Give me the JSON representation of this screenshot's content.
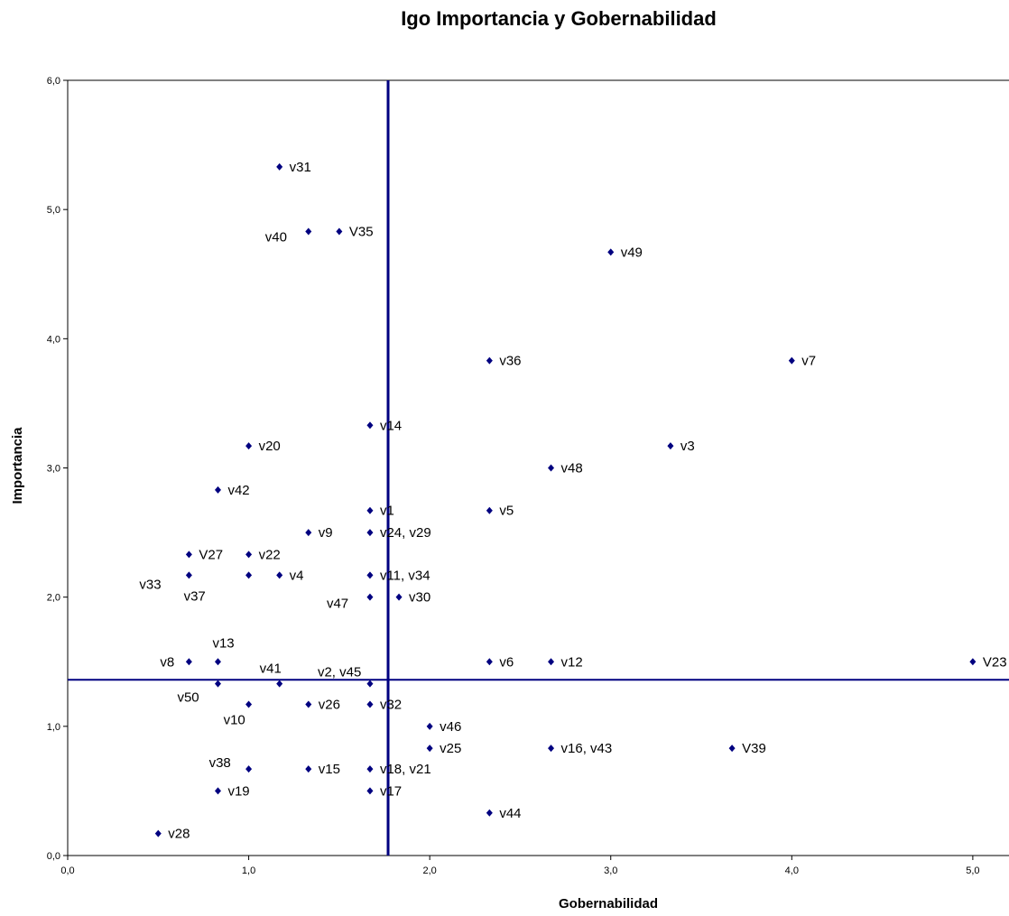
{
  "chart_data": {
    "type": "scatter",
    "title": "Igo Importancia y Gobernabilidad",
    "xlabel": "Gobernabilidad",
    "ylabel": "Importancia",
    "xlim": [
      0,
      5.2
    ],
    "ylim": [
      0,
      6
    ],
    "xticks": [
      "0,0",
      "1,0",
      "2,0",
      "3,0",
      "4,0",
      "5,0"
    ],
    "yticks": [
      "0,0",
      "1,0",
      "2,0",
      "3,0",
      "4,0",
      "5,0",
      "6,0"
    ],
    "grid": false,
    "marker_color": "#000080",
    "reference_lines": {
      "x": 1.77,
      "y": 1.36,
      "color": "#000080"
    },
    "points": [
      {
        "label": "v31",
        "x": 1.17,
        "y": 5.33
      },
      {
        "label": "v40",
        "x": 1.33,
        "y": 4.83
      },
      {
        "label": "V35",
        "x": 1.5,
        "y": 4.83
      },
      {
        "label": "v49",
        "x": 3.0,
        "y": 4.67
      },
      {
        "label": "v36",
        "x": 2.33,
        "y": 3.83
      },
      {
        "label": "v7",
        "x": 4.0,
        "y": 3.83
      },
      {
        "label": "v14",
        "x": 1.67,
        "y": 3.33
      },
      {
        "label": "v20",
        "x": 1.0,
        "y": 3.17
      },
      {
        "label": "v3",
        "x": 3.33,
        "y": 3.17
      },
      {
        "label": "v48",
        "x": 2.67,
        "y": 3.0
      },
      {
        "label": "v42",
        "x": 0.83,
        "y": 2.83
      },
      {
        "label": "v1",
        "x": 1.67,
        "y": 2.67
      },
      {
        "label": "v5",
        "x": 2.33,
        "y": 2.67
      },
      {
        "label": "v9",
        "x": 1.33,
        "y": 2.5
      },
      {
        "label": "v24, v29",
        "x": 1.67,
        "y": 2.5
      },
      {
        "label": "V27",
        "x": 0.67,
        "y": 2.33
      },
      {
        "label": "v22",
        "x": 1.0,
        "y": 2.33
      },
      {
        "label": "v33",
        "x": 0.67,
        "y": 2.17
      },
      {
        "label": "v37",
        "x": 1.0,
        "y": 2.17
      },
      {
        "label": "v4",
        "x": 1.17,
        "y": 2.17
      },
      {
        "label": "v11, v34",
        "x": 1.67,
        "y": 2.17
      },
      {
        "label": "v47",
        "x": 1.67,
        "y": 2.0
      },
      {
        "label": "v30",
        "x": 1.83,
        "y": 2.0
      },
      {
        "label": "v8",
        "x": 0.67,
        "y": 1.5
      },
      {
        "label": "v13",
        "x": 0.83,
        "y": 1.5
      },
      {
        "label": "v6",
        "x": 2.33,
        "y": 1.5
      },
      {
        "label": "v12",
        "x": 2.67,
        "y": 1.5
      },
      {
        "label": "V23",
        "x": 5.0,
        "y": 1.5
      },
      {
        "label": "v50",
        "x": 0.83,
        "y": 1.33
      },
      {
        "label": "v41",
        "x": 1.17,
        "y": 1.33
      },
      {
        "label": "v2, v45",
        "x": 1.67,
        "y": 1.33
      },
      {
        "label": "v10",
        "x": 1.0,
        "y": 1.17
      },
      {
        "label": "v26",
        "x": 1.33,
        "y": 1.17
      },
      {
        "label": "v32",
        "x": 1.67,
        "y": 1.17
      },
      {
        "label": "v46",
        "x": 2.0,
        "y": 1.0
      },
      {
        "label": "v25",
        "x": 2.0,
        "y": 0.83
      },
      {
        "label": "v16, v43",
        "x": 2.67,
        "y": 0.83
      },
      {
        "label": "V39",
        "x": 3.67,
        "y": 0.83
      },
      {
        "label": "v38",
        "x": 1.0,
        "y": 0.67
      },
      {
        "label": "v15",
        "x": 1.33,
        "y": 0.67
      },
      {
        "label": "v18, v21",
        "x": 1.67,
        "y": 0.67
      },
      {
        "label": "v19",
        "x": 0.83,
        "y": 0.5
      },
      {
        "label": "v17",
        "x": 1.67,
        "y": 0.5
      },
      {
        "label": "v44",
        "x": 2.33,
        "y": 0.33
      },
      {
        "label": "v28",
        "x": 0.5,
        "y": 0.17
      }
    ]
  }
}
